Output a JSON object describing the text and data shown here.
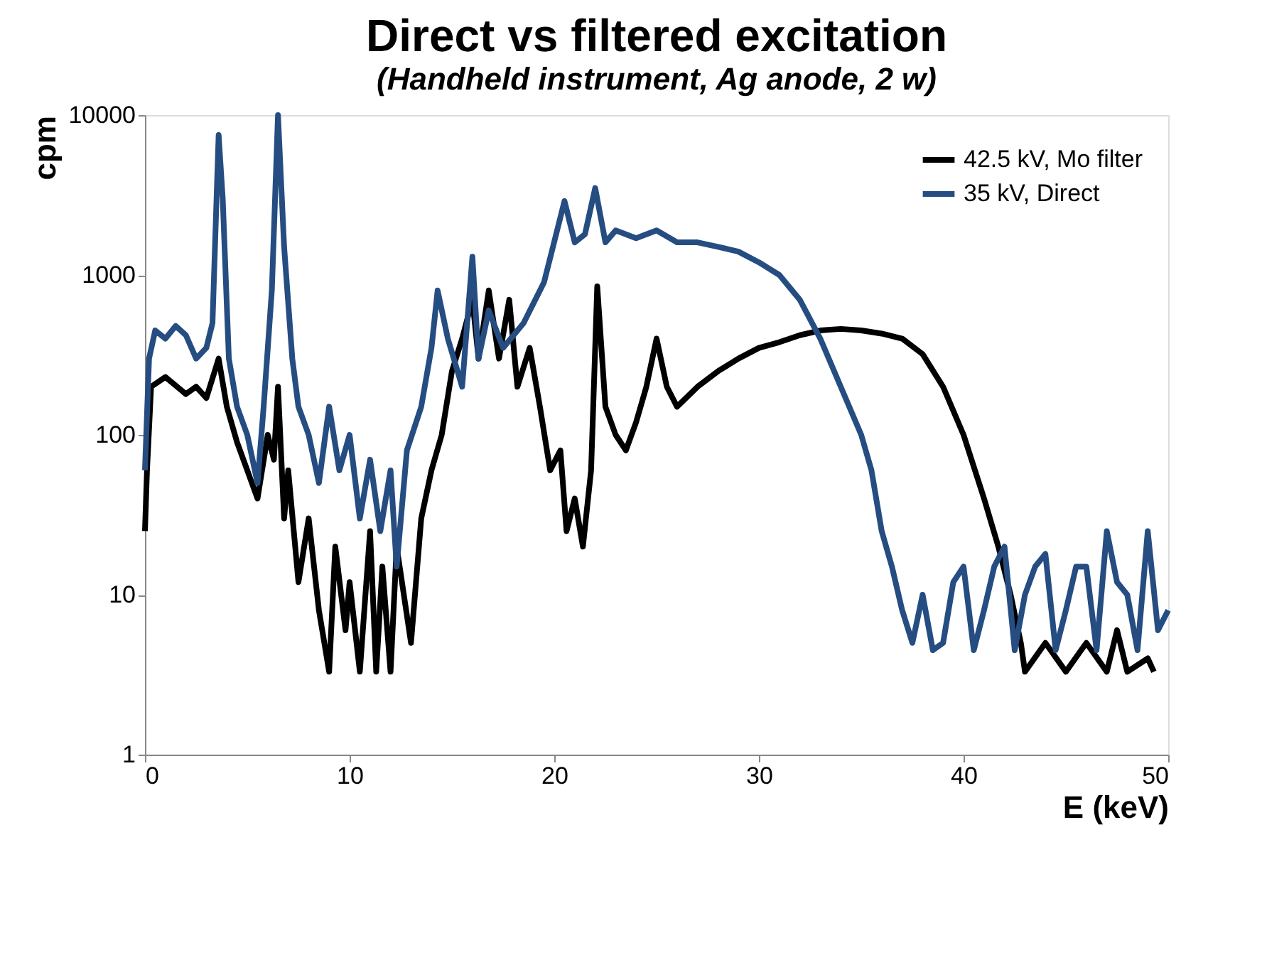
{
  "chart_data": {
    "type": "line",
    "title": "Direct vs filtered excitation",
    "subtitle": "(Handheld instrument, Ag anode, 2 w)",
    "xlabel": "E (keV)",
    "ylabel": "cpm",
    "xlim": [
      0,
      50
    ],
    "xticks": [
      0,
      10,
      20,
      30,
      40,
      50
    ],
    "ylim": [
      1,
      10000
    ],
    "yticks": [
      1,
      10,
      100,
      1000,
      10000
    ],
    "log": "y",
    "grid": false,
    "legend": "top right",
    "line_style": "solid",
    "marker": "none",
    "series": [
      {
        "name": "42.5 kV, Mo filter",
        "color": "#000000",
        "x": [
          0,
          0.1,
          0.3,
          1,
          2,
          2.5,
          3,
          3.6,
          4,
          4.5,
          5,
          5.5,
          6,
          6.3,
          6.5,
          6.8,
          7,
          7.5,
          8,
          8.5,
          9,
          9.3,
          9.8,
          10,
          10.5,
          11,
          11.3,
          11.6,
          12,
          12.3,
          13,
          13.5,
          14,
          14.5,
          15,
          15.5,
          16,
          16.3,
          16.8,
          17.3,
          17.8,
          18.2,
          18.8,
          19.3,
          19.8,
          20.3,
          20.6,
          21,
          21.4,
          21.8,
          22.1,
          22.5,
          23,
          23.5,
          24,
          24.5,
          25,
          25.5,
          26,
          27,
          28,
          29,
          30,
          31,
          32,
          33,
          34,
          35,
          36,
          37,
          38,
          39,
          40,
          41,
          41.7,
          42.3,
          42.8,
          43,
          44,
          45,
          46,
          47,
          47.5,
          48,
          49,
          49.3
        ],
        "values": [
          25,
          60,
          200,
          230,
          180,
          200,
          170,
          300,
          150,
          90,
          60,
          40,
          100,
          70,
          200,
          30,
          60,
          12,
          30,
          8,
          3.3,
          20,
          6,
          12,
          3.3,
          25,
          3.3,
          15,
          3.3,
          20,
          5,
          30,
          60,
          100,
          250,
          400,
          700,
          300,
          800,
          300,
          700,
          200,
          350,
          150,
          60,
          80,
          25,
          40,
          20,
          60,
          850,
          150,
          100,
          80,
          120,
          200,
          400,
          200,
          150,
          200,
          250,
          300,
          350,
          380,
          420,
          450,
          460,
          450,
          430,
          400,
          320,
          200,
          100,
          40,
          20,
          10,
          5,
          3.3,
          5,
          3.3,
          5,
          3.3,
          6,
          3.3,
          4,
          3.3
        ]
      },
      {
        "name": "35 kV, Direct",
        "color": "#264d82",
        "x": [
          0,
          0.2,
          0.5,
          1,
          1.5,
          2,
          2.5,
          3,
          3.3,
          3.6,
          3.8,
          4.1,
          4.5,
          5,
          5.5,
          5.8,
          6.2,
          6.5,
          6.8,
          7.2,
          7.5,
          8,
          8.5,
          9,
          9.5,
          10,
          10.5,
          11,
          11.5,
          12,
          12.3,
          12.8,
          13.5,
          14,
          14.3,
          14.8,
          15.5,
          16,
          16.3,
          16.8,
          17.5,
          18.5,
          19.5,
          20.5,
          21,
          21.5,
          22,
          22.5,
          23,
          24,
          25,
          26,
          27,
          28,
          29,
          30,
          31,
          32,
          33,
          34,
          35,
          35.5,
          36,
          36.5,
          37,
          37.5,
          38,
          38.5,
          39,
          39.5,
          40,
          40.5,
          41,
          41.5,
          42,
          42.5,
          43,
          43.5,
          44,
          44.5,
          45,
          45.5,
          46,
          46.5,
          47,
          47.5,
          48,
          48.5,
          49,
          49.5,
          50
        ],
        "values": [
          60,
          300,
          450,
          400,
          480,
          420,
          300,
          350,
          500,
          7500,
          3000,
          300,
          150,
          100,
          50,
          150,
          800,
          10000,
          1500,
          300,
          150,
          100,
          50,
          150,
          60,
          100,
          30,
          70,
          25,
          60,
          15,
          80,
          150,
          350,
          800,
          400,
          200,
          1300,
          300,
          600,
          350,
          500,
          900,
          2900,
          1600,
          1800,
          3500,
          1600,
          1900,
          1700,
          1900,
          1600,
          1600,
          1500,
          1400,
          1200,
          1000,
          700,
          400,
          200,
          100,
          60,
          25,
          15,
          8,
          5,
          10,
          4.5,
          5,
          12,
          15,
          4.5,
          8,
          15,
          20,
          4.5,
          10,
          15,
          18,
          4.5,
          8,
          15,
          15,
          4.5,
          25,
          12,
          10,
          4.5,
          25,
          6,
          8
        ]
      }
    ]
  }
}
